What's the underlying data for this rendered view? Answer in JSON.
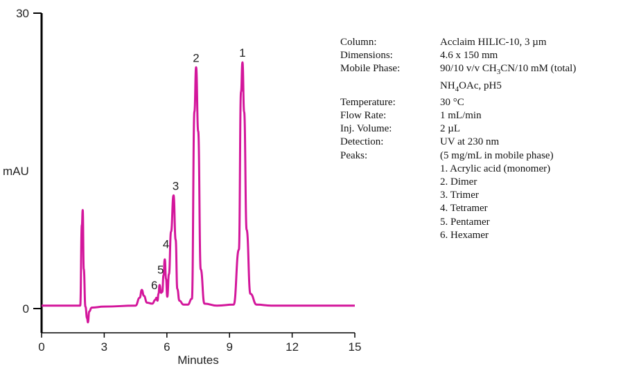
{
  "chart_data": {
    "type": "line",
    "xlabel": "Minutes",
    "ylabel": "mAU",
    "xlim": [
      0,
      15
    ],
    "ylim": [
      0,
      30
    ],
    "xticks": [
      "0",
      "3",
      "6",
      "9",
      "12",
      "15"
    ],
    "yticks": [
      "0",
      "30"
    ],
    "series_color": "#d3169b",
    "series": [
      {
        "x": [
          0,
          1.85,
          1.93,
          1.97,
          2.02,
          2.1,
          2.18,
          2.22,
          2.28,
          2.4,
          3.0,
          4.5,
          4.7,
          4.8,
          4.9,
          5.05,
          5.3,
          5.45,
          5.5,
          5.55,
          5.6,
          5.65,
          5.72,
          5.78,
          5.84,
          5.9,
          5.96,
          6.02,
          6.1,
          6.2,
          6.32,
          6.42,
          6.5,
          6.6,
          6.8,
          7.0,
          7.2,
          7.32,
          7.4,
          7.5,
          7.62,
          7.8,
          8.4,
          9.2,
          9.45,
          9.55,
          9.62,
          9.7,
          9.82,
          10.0,
          10.3,
          11.0,
          15.0
        ],
        "y": [
          0.3,
          0.3,
          8.5,
          10.0,
          4.0,
          0.2,
          -1.0,
          -1.4,
          -0.3,
          0.1,
          0.2,
          0.3,
          1.1,
          1.9,
          1.3,
          0.6,
          0.5,
          0.9,
          1.1,
          0.8,
          1.5,
          2.4,
          1.6,
          1.7,
          3.4,
          5.0,
          3.0,
          1.2,
          3.5,
          7.8,
          11.5,
          7.0,
          2.0,
          0.8,
          0.4,
          0.4,
          1.0,
          20.0,
          24.5,
          18.0,
          4.0,
          0.5,
          0.3,
          0.4,
          6.0,
          22.0,
          25.0,
          20.0,
          8.0,
          1.5,
          0.4,
          0.3,
          0.3
        ]
      }
    ],
    "peaks": [
      {
        "label": "1",
        "x": 9.62,
        "y": 25.0
      },
      {
        "label": "2",
        "x": 7.4,
        "y": 24.5
      },
      {
        "label": "3",
        "x": 6.42,
        "y": 11.5
      },
      {
        "label": "4",
        "x": 5.96,
        "y": 5.6
      },
      {
        "label": "5",
        "x": 5.7,
        "y": 3.0
      },
      {
        "label": "6",
        "x": 5.4,
        "y": 1.4
      }
    ]
  },
  "conditions": [
    {
      "label": "Column:",
      "value": "Acclaim HILIC-10, 3 µm"
    },
    {
      "label": "Dimensions:",
      "value": "4.6 x 150 mm"
    },
    {
      "label": "Mobile Phase:",
      "value_html": "90/10 v/v CH<sub>3</sub>CN/10 mM (total)"
    },
    {
      "label": "",
      "value_html": "NH<sub>4</sub>OAc, pH5"
    },
    {
      "label": "Temperature:",
      "value": "30 °C"
    },
    {
      "label": "Flow Rate:",
      "value": "1 mL/min"
    },
    {
      "label": "Inj. Volume:",
      "value": "2 µL"
    },
    {
      "label": "Detection:",
      "value": "UV at 230 nm"
    },
    {
      "label": "Peaks:",
      "value": "(5 mg/mL in mobile phase)"
    },
    {
      "label": "",
      "value": "1. Acrylic acid (monomer)"
    },
    {
      "label": "",
      "value": "2. Dimer"
    },
    {
      "label": "",
      "value": "3. Trimer"
    },
    {
      "label": "",
      "value": "4. Tetramer"
    },
    {
      "label": "",
      "value": "5. Pentamer"
    },
    {
      "label": "",
      "value": "6. Hexamer"
    }
  ]
}
